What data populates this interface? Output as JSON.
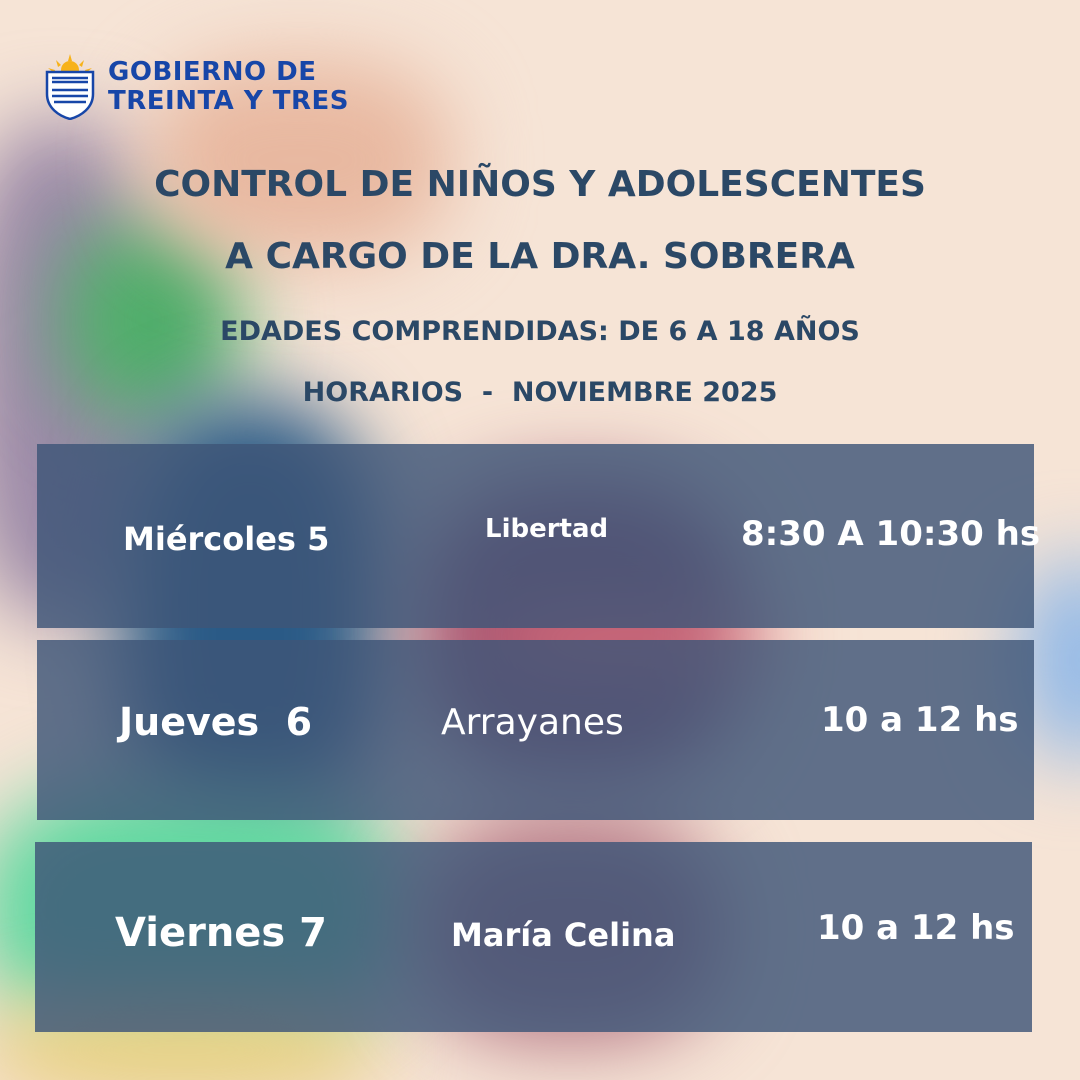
{
  "logo": {
    "line1": "GOBIERNO DE",
    "line2": "TREINTA Y TRES",
    "icon": "coat-of-arms-shield-with-sun"
  },
  "title_line1": "CONTROL DE NIÑOS Y ADOLESCENTES",
  "title_line2": "A CARGO DE LA DRA. SOBRERA",
  "ages": "EDADES COMPRENDIDAS: DE 6 A 18 AÑOS",
  "schedule_heading": "HORARIOS  -  NOVIEMBRE 2025",
  "colors": {
    "brand_blue": "#1746a8",
    "title_navy": "#2b4866",
    "row_bg": "#3e5678"
  },
  "rows": [
    {
      "day": "Miércoles 5",
      "place": "Libertad",
      "time": "8:30 A 10:30 hs"
    },
    {
      "day": "Jueves  6",
      "place": "Arrayanes",
      "time": "10 a 12 hs"
    },
    {
      "day": "Viernes 7",
      "place": "María Celina",
      "time": "10 a 12 hs"
    }
  ]
}
